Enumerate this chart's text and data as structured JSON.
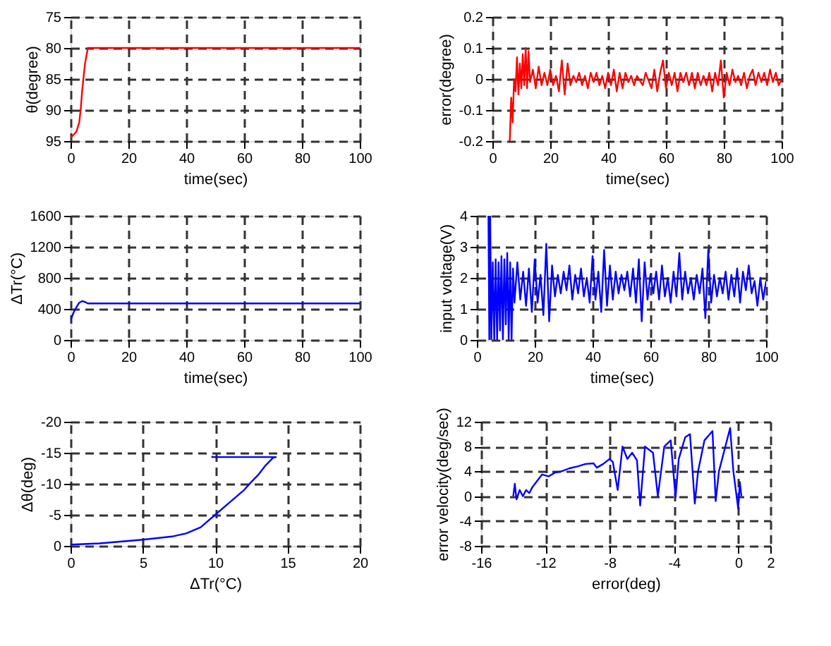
{
  "chart_data": [
    {
      "type": "line",
      "xlabel": "time(sec)",
      "ylabel": "θ(degree)",
      "xlim": [
        0,
        100
      ],
      "ylim": [
        95,
        75
      ],
      "xticks": [
        0,
        20,
        40,
        60,
        80,
        100
      ],
      "yticks": [
        75,
        80,
        85,
        90,
        95
      ],
      "grid": true,
      "series": [
        {
          "color": "#ff0000",
          "x": [
            0,
            1,
            2,
            3,
            3.5,
            4,
            5,
            6,
            20,
            40,
            60,
            80,
            100
          ],
          "values": [
            94.5,
            94,
            93.5,
            92,
            90,
            87,
            82.5,
            80,
            80,
            80,
            80,
            80,
            80
          ]
        }
      ]
    },
    {
      "type": "line",
      "xlabel": "time(sec)",
      "ylabel": "error(degree)",
      "xlim": [
        0,
        100
      ],
      "ylim": [
        -0.2,
        0.2
      ],
      "xticks": [
        0,
        20,
        40,
        60,
        80,
        100
      ],
      "yticks": [
        -0.2,
        -0.1,
        0,
        0.1,
        0.2
      ],
      "grid": true,
      "series": [
        {
          "color": "#ff0000",
          "x": [
            6,
            6.5,
            7,
            7.5,
            8,
            8.5,
            9,
            9.5,
            10,
            10.5,
            11,
            11.5,
            12,
            12.5,
            13,
            14,
            15,
            16,
            17,
            18,
            19,
            20,
            21,
            22,
            23,
            24,
            25,
            26,
            27,
            28,
            29,
            30,
            31,
            32,
            33,
            34,
            35,
            36,
            37,
            38,
            39,
            40,
            41,
            42,
            43,
            44,
            45,
            46,
            47,
            48,
            49,
            50,
            52,
            53,
            55,
            56,
            57,
            58,
            59,
            60,
            61,
            62,
            63,
            64,
            65,
            66,
            67,
            68,
            69,
            70,
            71,
            72,
            73,
            74,
            75,
            76,
            77,
            78,
            79,
            80,
            81,
            82,
            83,
            84,
            85,
            86,
            87,
            88,
            89,
            90,
            91,
            92,
            93,
            94,
            95,
            96,
            97,
            98,
            99,
            100
          ],
          "values": [
            -0.2,
            -0.06,
            -0.14,
            0,
            -0.04,
            0.07,
            -0.05,
            0.05,
            -0.03,
            0.08,
            -0.02,
            0.1,
            -0.03,
            0.09,
            -0.01,
            0.03,
            -0.03,
            0.04,
            -0.02,
            0.02,
            -0.02,
            0.03,
            -0.02,
            0.01,
            -0.04,
            0.06,
            -0.05,
            0.05,
            -0.02,
            0.01,
            -0.01,
            0.02,
            -0.02,
            0.01,
            -0.03,
            0.02,
            -0.01,
            0.02,
            -0.02,
            0.01,
            -0.03,
            0.02,
            -0.02,
            0.03,
            -0.04,
            0.02,
            -0.03,
            0.02,
            -0.01,
            0.01,
            -0.02,
            0.01,
            -0.02,
            0.02,
            -0.03,
            0.03,
            -0.04,
            0.02,
            0.06,
            -0.03,
            0.02,
            -0.02,
            0.02,
            -0.04,
            0.02,
            -0.01,
            0.02,
            -0.02,
            0.02,
            -0.03,
            0.02,
            -0.02,
            0.01,
            -0.02,
            0.02,
            -0.04,
            0.02,
            -0.02,
            0.06,
            -0.06,
            0.02,
            -0.02,
            0.03,
            -0.01,
            0.01,
            -0.02,
            0.02,
            -0.03,
            0.01,
            0.03,
            -0.02,
            0.02,
            -0.01,
            0.02,
            -0.02,
            0.03,
            -0.01,
            0.02,
            -0.02,
            0
          ]
        }
      ]
    },
    {
      "type": "line",
      "xlabel": "time(sec)",
      "ylabel": "ΔTr(°C)",
      "xlim": [
        0,
        100
      ],
      "ylim": [
        0,
        1600
      ],
      "xticks": [
        0,
        20,
        40,
        60,
        80,
        100
      ],
      "yticks": [
        0,
        400,
        800,
        1200,
        1600
      ],
      "grid": true,
      "series": [
        {
          "color": "#0000ff",
          "x": [
            0,
            1,
            2,
            3,
            4,
            5,
            6,
            20,
            40,
            60,
            80,
            100
          ],
          "values": [
            250,
            350,
            420,
            480,
            500,
            490,
            470,
            470,
            470,
            470,
            470,
            470
          ]
        }
      ]
    },
    {
      "type": "line",
      "xlabel": "time(sec)",
      "ylabel": "input voltage(V)",
      "xlim": [
        0,
        100
      ],
      "ylim": [
        0,
        4
      ],
      "xticks": [
        0,
        20,
        40,
        60,
        80,
        100
      ],
      "yticks": [
        0,
        1,
        2,
        3,
        4
      ],
      "grid": true,
      "series": [
        {
          "color": "#0000ff",
          "x": [
            4,
            4.3,
            4.6,
            5,
            5.5,
            6,
            6.5,
            7,
            7.5,
            8,
            8.5,
            9,
            9.5,
            10,
            10.5,
            11,
            11.5,
            12,
            12.5,
            13,
            14,
            15,
            16,
            17,
            18,
            19,
            20,
            21,
            22,
            23,
            24,
            25,
            26,
            27,
            28,
            29,
            30,
            31,
            32,
            33,
            34,
            35,
            36,
            37,
            38,
            39,
            40,
            41,
            42,
            43,
            44,
            45,
            46,
            47,
            48,
            49,
            50,
            51,
            52,
            53,
            54,
            55,
            56,
            57,
            58,
            59,
            60,
            61,
            62,
            63,
            64,
            65,
            66,
            67,
            68,
            69,
            70,
            71,
            72,
            73,
            74,
            75,
            76,
            77,
            78,
            79,
            80,
            81,
            82,
            83,
            84,
            85,
            86,
            87,
            88,
            89,
            90,
            91,
            92,
            93,
            94,
            95,
            96,
            97,
            98,
            99,
            100
          ],
          "values": [
            4,
            0,
            4,
            0,
            2.5,
            0,
            2.6,
            0,
            2.5,
            0.3,
            2.7,
            0,
            2.6,
            0.5,
            2.8,
            0,
            2.5,
            0,
            2.3,
            1.2,
            2.5,
            1.3,
            2.2,
            1.1,
            2.3,
            0.9,
            2.6,
            1.2,
            2.1,
            0.8,
            3.1,
            0.6,
            2.4,
            1.4,
            2.1,
            1.5,
            2.2,
            1.6,
            2.4,
            1.3,
            2.1,
            1.5,
            2.3,
            1.4,
            2,
            1.2,
            2.7,
            1.3,
            2.2,
            0.9,
            2.9,
            1.1,
            2.4,
            1.3,
            2.2,
            1.5,
            2.1,
            1.6,
            2.2,
            1.4,
            2.3,
            1.2,
            2.6,
            0.6,
            2.5,
            1.3,
            2.1,
            1.5,
            2.2,
            1.3,
            2.4,
            1.4,
            2,
            1.2,
            2.2,
            1.4,
            2.8,
            1.3,
            2.2,
            1.5,
            2,
            1.3,
            2.1,
            1.5,
            2.3,
            0.7,
            2.9,
            1.2,
            2.1,
            1.4,
            2,
            1.5,
            2.2,
            1.3,
            2.1,
            1.4,
            2.3,
            1.2,
            2.2,
            1.6,
            2.4,
            1.5,
            1.9,
            1.1,
            2,
            1.3,
            1.9
          ]
        }
      ]
    },
    {
      "type": "line",
      "xlabel": "ΔTr(°C)",
      "ylabel": "Δθ(deg)",
      "xlim": [
        0,
        20
      ],
      "ylim": [
        0,
        -20
      ],
      "xticks": [
        0,
        5,
        10,
        15,
        20
      ],
      "yticks": [
        -20,
        -15,
        -10,
        -5,
        0
      ],
      "grid": true,
      "series": [
        {
          "color": "#0000ff",
          "x": [
            0,
            2,
            5,
            7,
            8,
            9,
            10,
            11,
            12,
            12.5,
            13,
            13.5,
            14,
            14.2,
            12,
            9.8,
            9.8
          ],
          "values": [
            -0.2,
            -0.4,
            -1,
            -1.5,
            -2,
            -3,
            -5,
            -7,
            -9,
            -10.3,
            -11.5,
            -13,
            -14.2,
            -14.3,
            -14.3,
            -14.3,
            -14.5
          ]
        }
      ]
    },
    {
      "type": "line",
      "xlabel": "error(deg)",
      "ylabel": "error velocity(deg/sec)",
      "xlim": [
        -16,
        2
      ],
      "ylim": [
        -8,
        12
      ],
      "xticks": [
        -16,
        -12,
        -8,
        -4,
        0,
        2
      ],
      "yticks": [
        -8,
        -4,
        0,
        4,
        8,
        12
      ],
      "grid": true,
      "series": [
        {
          "color": "#0000ff",
          "x": [
            -14,
            -13.9,
            -13.8,
            -13.6,
            -13.4,
            -13.2,
            -13,
            -12.8,
            -12.5,
            -12.2,
            -11.8,
            -11.4,
            -11,
            -10.5,
            -10,
            -9.5,
            -9,
            -8.8,
            -8.4,
            -8,
            -7.8,
            -7.5,
            -7.2,
            -6.9,
            -6.6,
            -6.3,
            -6.1,
            -5.8,
            -5.3,
            -5,
            -4.6,
            -4.2,
            -3.9,
            -3.7,
            -3.3,
            -3,
            -2.7,
            -2.5,
            -2.1,
            -1.6,
            -1.4,
            -1.2,
            -0.5,
            -0.3,
            -0.1,
            0,
            0.1,
            0.2
          ],
          "values": [
            0,
            2,
            -0.5,
            1,
            0,
            1,
            0.5,
            1.5,
            2.5,
            3.5,
            3.2,
            3.8,
            4,
            4.5,
            4.8,
            5.2,
            5.3,
            4.6,
            5.2,
            6,
            5.5,
            1,
            8,
            6,
            7,
            5.8,
            -1.5,
            8,
            7,
            0,
            8,
            9,
            -0.2,
            6,
            9.5,
            10,
            -1.2,
            4,
            9,
            10.5,
            -0.8,
            4,
            11,
            4,
            0,
            -2,
            2.3,
            0
          ]
        }
      ]
    }
  ]
}
